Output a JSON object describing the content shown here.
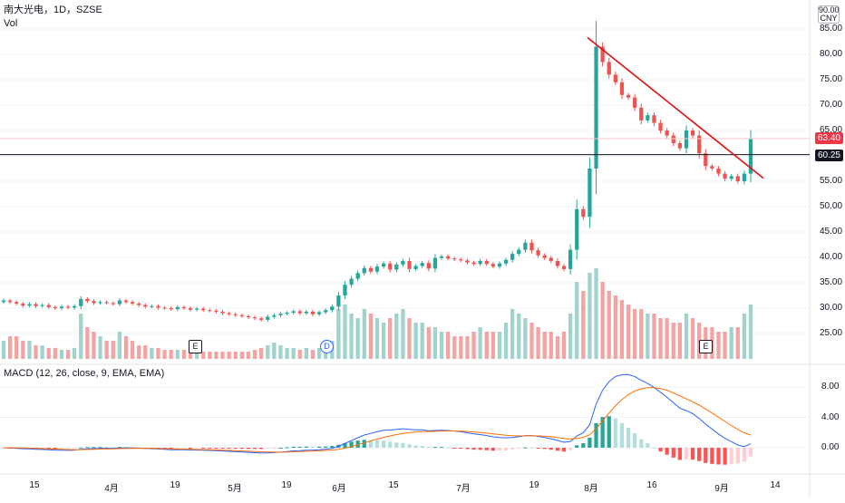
{
  "header": {
    "symbol_line": "南大光电，1D，SZSE",
    "volume_label": "Vol",
    "currency_button": "CNY"
  },
  "price_axis": {
    "ticks": [
      "85.00",
      "80.00",
      "75.00",
      "70.00",
      "65.00",
      "55.00",
      "50.00",
      "45.00",
      "40.00",
      "35.00",
      "30.00",
      "25.00"
    ],
    "top_partial_tick": "90.00",
    "last_price_tag": "63.40",
    "crosshair_price_tag": "60.25",
    "last_price_color": "#f23645",
    "crosshair_color": "#131722"
  },
  "macd": {
    "legend": "MACD (12, 26, close, 9, EMA, EMA)",
    "ticks": [
      "8.00",
      "4.00",
      "0.00"
    ],
    "macd_line_color": "#2962ff",
    "signal_line_color": "#ff6d00"
  },
  "time_axis": {
    "labels": [
      "15",
      "4月",
      "19",
      "5月",
      "19",
      "6月",
      "15",
      "7月",
      "19",
      "8月",
      "16",
      "9月",
      "14"
    ]
  },
  "markers": [
    {
      "letter": "E",
      "type": "earnings"
    },
    {
      "letter": "D",
      "type": "dividend"
    },
    {
      "letter": "E",
      "type": "earnings"
    }
  ],
  "colors": {
    "up": "#26a69a",
    "down": "#ef5350",
    "vol_up": "#9fd3cc",
    "vol_down": "#f5a3a2",
    "trendline": "#e01010"
  },
  "chart_data": {
    "type": "candlestick",
    "title": "南大光电，1D，SZSE",
    "ylim": [
      20,
      90
    ],
    "price_series_close": [
      31.5,
      31.2,
      30.9,
      30.5,
      30.8,
      30.4,
      30.6,
      30.2,
      30.0,
      30.3,
      30.1,
      30.4,
      31.8,
      31.4,
      31.0,
      31.2,
      31.0,
      30.8,
      31.5,
      31.2,
      30.9,
      30.6,
      30.3,
      30.4,
      30.1,
      30.0,
      29.8,
      30.2,
      30.0,
      29.7,
      29.9,
      29.6,
      29.5,
      29.3,
      29.0,
      28.8,
      28.6,
      28.4,
      28.2,
      28.0,
      27.7,
      28.3,
      28.6,
      28.9,
      29.1,
      29.4,
      29.0,
      29.3,
      28.8,
      29.2,
      29.6,
      30.3,
      32.5,
      34.6,
      35.8,
      36.9,
      37.9,
      37.2,
      38.2,
      38.8,
      37.6,
      38.6,
      39.3,
      37.7,
      38.3,
      38.9,
      37.8,
      39.9,
      40.2,
      39.8,
      39.6,
      39.4,
      39.0,
      38.7,
      39.3,
      38.7,
      38.2,
      38.8,
      39.5,
      40.7,
      41.5,
      42.9,
      41.4,
      40.4,
      39.9,
      39.3,
      38.3,
      37.7,
      41.5,
      49.5,
      48.0,
      57.5,
      81.5,
      78.5,
      76.0,
      74.5,
      72.0,
      71.5,
      69.5,
      67.0,
      68.0,
      66.5,
      65.0,
      64.0,
      62.5,
      61.5,
      65.0,
      64.0,
      60.5,
      58.0,
      57.5,
      56.5,
      55.5,
      56.0,
      55.0,
      56.5,
      63.4
    ],
    "volume_relative": [
      0.2,
      0.25,
      0.25,
      0.2,
      0.2,
      0.15,
      0.15,
      0.12,
      0.12,
      0.1,
      0.1,
      0.12,
      0.5,
      0.35,
      0.3,
      0.25,
      0.2,
      0.2,
      0.3,
      0.25,
      0.2,
      0.15,
      0.15,
      0.12,
      0.12,
      0.1,
      0.1,
      0.1,
      0.1,
      0.1,
      0.08,
      0.08,
      0.08,
      0.08,
      0.08,
      0.08,
      0.08,
      0.08,
      0.08,
      0.1,
      0.12,
      0.15,
      0.18,
      0.15,
      0.12,
      0.12,
      0.1,
      0.12,
      0.1,
      0.12,
      0.15,
      0.2,
      0.55,
      0.6,
      0.5,
      0.45,
      0.55,
      0.5,
      0.45,
      0.4,
      0.45,
      0.5,
      0.55,
      0.45,
      0.4,
      0.4,
      0.35,
      0.35,
      0.3,
      0.3,
      0.25,
      0.25,
      0.25,
      0.3,
      0.35,
      0.3,
      0.3,
      0.3,
      0.4,
      0.55,
      0.5,
      0.45,
      0.4,
      0.35,
      0.3,
      0.3,
      0.25,
      0.3,
      0.5,
      0.85,
      0.75,
      0.95,
      1.0,
      0.85,
      0.75,
      0.7,
      0.65,
      0.6,
      0.55,
      0.55,
      0.5,
      0.5,
      0.45,
      0.45,
      0.4,
      0.4,
      0.5,
      0.45,
      0.4,
      0.35,
      0.35,
      0.3,
      0.3,
      0.35,
      0.35,
      0.5,
      0.6
    ]
  }
}
